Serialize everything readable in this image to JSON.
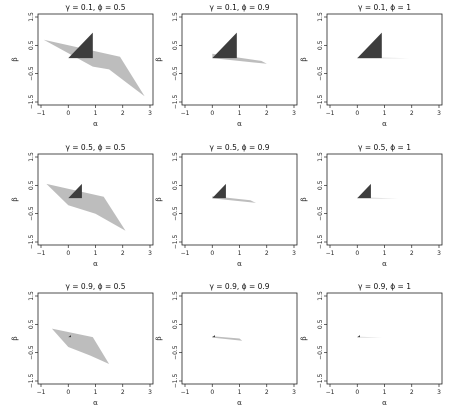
{
  "chart_data": [
    {
      "type": "polygon",
      "title": "γ = 0.1,  ϕ = 0.5",
      "xlabel": "α",
      "ylabel": "β",
      "xlim": [
        -1,
        3
      ],
      "ylim": [
        -1.5,
        1.5
      ],
      "xticks": [
        "−1",
        "0",
        "1",
        "2",
        "3"
      ],
      "yticks": [
        "−1.5",
        "−0.5",
        "0.5",
        "1.5"
      ],
      "shapes": [
        {
          "name": "light",
          "color": "#bdbdbd",
          "points": [
            [
              -0.9,
              0.7
            ],
            [
              1.9,
              0.1
            ],
            [
              2.8,
              -1.3
            ],
            [
              1.5,
              -0.35
            ],
            [
              0.9,
              -0.25
            ]
          ]
        },
        {
          "name": "dark",
          "color": "#3d3d3d",
          "points": [
            [
              0,
              0.05
            ],
            [
              0.9,
              0.05
            ],
            [
              0.9,
              0.95
            ]
          ]
        }
      ]
    },
    {
      "type": "polygon",
      "title": "γ = 0.1,  ϕ = 0.9",
      "xlabel": "α",
      "ylabel": "β",
      "xlim": [
        -1,
        3
      ],
      "ylim": [
        -1.5,
        1.5
      ],
      "xticks": [
        "−1",
        "0",
        "1",
        "2",
        "3"
      ],
      "yticks": [
        "−1.5",
        "−0.5",
        "0.5",
        "1.5"
      ],
      "shapes": [
        {
          "name": "light",
          "color": "#bdbdbd",
          "points": [
            [
              0,
              0.2
            ],
            [
              1.8,
              -0.05
            ],
            [
              2,
              -0.15
            ],
            [
              0,
              0.05
            ]
          ]
        },
        {
          "name": "dark",
          "color": "#3d3d3d",
          "points": [
            [
              0,
              0.05
            ],
            [
              0.9,
              0.05
            ],
            [
              0.9,
              0.95
            ]
          ]
        }
      ]
    },
    {
      "type": "polygon",
      "title": "γ = 0.1,  ϕ = 1",
      "xlabel": "α",
      "ylabel": "β",
      "xlim": [
        -1,
        3
      ],
      "ylim": [
        -1.5,
        1.5
      ],
      "xticks": [
        "−1",
        "0",
        "1",
        "2",
        "3"
      ],
      "yticks": [
        "−1.5",
        "−0.5",
        "0.5",
        "1.5"
      ],
      "shapes": [
        {
          "name": "light",
          "color": "#bdbdbd",
          "points": [
            [
              0,
              0.07
            ],
            [
              1.9,
              0.05
            ],
            [
              0,
              0.04
            ]
          ]
        },
        {
          "name": "dark",
          "color": "#3d3d3d",
          "points": [
            [
              0,
              0.05
            ],
            [
              0.9,
              0.05
            ],
            [
              0.9,
              0.95
            ]
          ]
        }
      ]
    },
    {
      "type": "polygon",
      "title": "γ = 0.5,  ϕ = 0.5",
      "xlabel": "α",
      "ylabel": "β",
      "xlim": [
        -1,
        3
      ],
      "ylim": [
        -1.5,
        1.5
      ],
      "xticks": [
        "−1",
        "0",
        "1",
        "2",
        "3"
      ],
      "yticks": [
        "−1.5",
        "−0.5",
        "0.5",
        "1.5"
      ],
      "shapes": [
        {
          "name": "light",
          "color": "#bdbdbd",
          "points": [
            [
              -0.8,
              0.55
            ],
            [
              1.3,
              0.1
            ],
            [
              2.1,
              -1.1
            ],
            [
              1.0,
              -0.5
            ],
            [
              0,
              -0.2
            ]
          ]
        },
        {
          "name": "dark",
          "color": "#3d3d3d",
          "points": [
            [
              0,
              0.05
            ],
            [
              0.5,
              0.05
            ],
            [
              0.5,
              0.55
            ]
          ]
        }
      ]
    },
    {
      "type": "polygon",
      "title": "γ = 0.5,  ϕ = 0.9",
      "xlabel": "α",
      "ylabel": "β",
      "xlim": [
        -1,
        3
      ],
      "ylim": [
        -1.5,
        1.5
      ],
      "xticks": [
        "−1",
        "0",
        "1",
        "2",
        "3"
      ],
      "yticks": [
        "−1.5",
        "−0.5",
        "0.5",
        "1.5"
      ],
      "shapes": [
        {
          "name": "light",
          "color": "#bdbdbd",
          "points": [
            [
              0,
              0.12
            ],
            [
              1.4,
              -0.03
            ],
            [
              1.6,
              -0.12
            ],
            [
              0,
              0.04
            ]
          ]
        },
        {
          "name": "dark",
          "color": "#3d3d3d",
          "points": [
            [
              0,
              0.05
            ],
            [
              0.5,
              0.05
            ],
            [
              0.5,
              0.55
            ]
          ]
        }
      ]
    },
    {
      "type": "polygon",
      "title": "γ = 0.5,  ϕ = 1",
      "xlabel": "α",
      "ylabel": "β",
      "xlim": [
        -1,
        3
      ],
      "ylim": [
        -1.5,
        1.5
      ],
      "xticks": [
        "−1",
        "0",
        "1",
        "2",
        "3"
      ],
      "yticks": [
        "−1.5",
        "−0.5",
        "0.5",
        "1.5"
      ],
      "shapes": [
        {
          "name": "light",
          "color": "#bdbdbd",
          "points": [
            [
              0,
              0.07
            ],
            [
              1.5,
              0.04
            ],
            [
              0,
              0.04
            ]
          ]
        },
        {
          "name": "dark",
          "color": "#3d3d3d",
          "points": [
            [
              0,
              0.05
            ],
            [
              0.5,
              0.05
            ],
            [
              0.5,
              0.55
            ]
          ]
        }
      ]
    },
    {
      "type": "polygon",
      "title": "γ = 0.9,  ϕ = 0.5",
      "xlabel": "α",
      "ylabel": "β",
      "xlim": [
        -1,
        3
      ],
      "ylim": [
        -1.5,
        1.5
      ],
      "xticks": [
        "−1",
        "0",
        "1",
        "2",
        "3"
      ],
      "yticks": [
        "−1.5",
        "−0.5",
        "0.5",
        "1.5"
      ],
      "shapes": [
        {
          "name": "light",
          "color": "#bdbdbd",
          "points": [
            [
              -0.6,
              0.35
            ],
            [
              0.9,
              0.05
            ],
            [
              1.5,
              -0.9
            ],
            [
              0.8,
              -0.6
            ],
            [
              0,
              -0.3
            ]
          ]
        },
        {
          "name": "dark",
          "color": "#3d3d3d",
          "points": [
            [
              0,
              0.05
            ],
            [
              0.1,
              0.05
            ],
            [
              0.1,
              0.12
            ]
          ]
        }
      ]
    },
    {
      "type": "polygon",
      "title": "γ = 0.9,  ϕ = 0.9",
      "xlabel": "α",
      "ylabel": "β",
      "xlim": [
        -1,
        3
      ],
      "ylim": [
        -1.5,
        1.5
      ],
      "xticks": [
        "−1",
        "0",
        "1",
        "2",
        "3"
      ],
      "yticks": [
        "−1.5",
        "−0.5",
        "0.5",
        "1.5"
      ],
      "shapes": [
        {
          "name": "light",
          "color": "#bdbdbd",
          "points": [
            [
              0,
              0.08
            ],
            [
              1.0,
              0.0
            ],
            [
              1.1,
              -0.08
            ],
            [
              0,
              0.03
            ]
          ]
        },
        {
          "name": "dark",
          "color": "#3d3d3d",
          "points": [
            [
              0,
              0.05
            ],
            [
              0.1,
              0.05
            ],
            [
              0.1,
              0.12
            ]
          ]
        }
      ]
    },
    {
      "type": "polygon",
      "title": "γ = 0.9,  ϕ = 1",
      "xlabel": "α",
      "ylabel": "β",
      "xlim": [
        -1,
        3
      ],
      "ylim": [
        -1.5,
        1.5
      ],
      "xticks": [
        "−1",
        "0",
        "1",
        "2",
        "3"
      ],
      "yticks": [
        "−1.5",
        "−0.5",
        "0.5",
        "1.5"
      ],
      "shapes": [
        {
          "name": "light",
          "color": "#bdbdbd",
          "points": [
            [
              0,
              0.06
            ],
            [
              1.0,
              0.04
            ],
            [
              0,
              0.04
            ]
          ]
        },
        {
          "name": "dark",
          "color": "#3d3d3d",
          "points": [
            [
              0,
              0.05
            ],
            [
              0.1,
              0.05
            ],
            [
              0.1,
              0.12
            ]
          ]
        }
      ]
    }
  ]
}
